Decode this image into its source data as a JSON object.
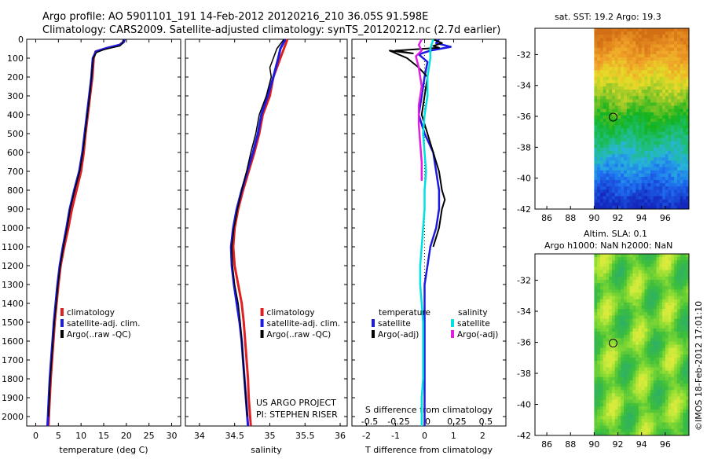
{
  "title_line1": "Argo profile: AO 5901101_191 14-Feb-2012 20120216_210 36.05S 91.598E",
  "title_line2": "Climatology: CARS2009. Satellite-adjusted climatology: synTS_20120212.nc (2.7d earlier)",
  "credit": "US ARGO PROJECT",
  "pi": "PI: STEPHEN RISER",
  "watermark": "©IMOS 18-Feb-2012 17:01:10",
  "map1_title": "sat. SST: 19.2  Argo: 19.3",
  "map2_title1": "Altim. SLA: 0.1",
  "map2_title2": "Argo h1000: NaN h2000: NaN",
  "chart_data": [
    {
      "type": "line",
      "xlabel": "temperature (deg C)",
      "xlim": [
        -2,
        32
      ],
      "xticks": [
        0,
        5,
        10,
        15,
        20,
        25,
        30
      ],
      "ylim": [
        0,
        2050
      ],
      "yticks": [
        0,
        100,
        200,
        300,
        400,
        500,
        600,
        700,
        800,
        900,
        1000,
        1100,
        1200,
        1300,
        1400,
        1500,
        1600,
        1700,
        1800,
        1900,
        2000
      ],
      "y_reversed": true,
      "legend": [
        "climatology",
        "satellite-adj. clim.",
        "Argo(..raw -QC)"
      ],
      "legend_colors": [
        "#e02020",
        "#1a1ae0",
        "#000000"
      ],
      "series": [
        {
          "name": "climatology",
          "color": "#e02020",
          "width": 3,
          "points": [
            [
              19.5,
              0
            ],
            [
              19.3,
              15
            ],
            [
              18.5,
              30
            ],
            [
              16,
              45
            ],
            [
              13.2,
              65
            ],
            [
              12.8,
              100
            ],
            [
              12.5,
              200
            ],
            [
              12,
              300
            ],
            [
              11.5,
              400
            ],
            [
              11,
              500
            ],
            [
              10.6,
              600
            ],
            [
              10,
              700
            ],
            [
              9,
              800
            ],
            [
              8,
              900
            ],
            [
              7.2,
              1000
            ],
            [
              6.3,
              1100
            ],
            [
              5.5,
              1200
            ],
            [
              5,
              1300
            ],
            [
              4.6,
              1400
            ],
            [
              4.2,
              1500
            ],
            [
              3.9,
              1600
            ],
            [
              3.6,
              1700
            ],
            [
              3.3,
              1800
            ],
            [
              3.1,
              1900
            ],
            [
              2.9,
              2000
            ],
            [
              2.8,
              2050
            ]
          ]
        },
        {
          "name": "satellite-adj. clim.",
          "color": "#1a1ae0",
          "width": 3,
          "points": [
            [
              19.6,
              0
            ],
            [
              19.4,
              15
            ],
            [
              18.5,
              30
            ],
            [
              15.5,
              48
            ],
            [
              13.3,
              65
            ],
            [
              12.6,
              100
            ],
            [
              12.3,
              200
            ],
            [
              11.8,
              300
            ],
            [
              11.3,
              400
            ],
            [
              10.8,
              500
            ],
            [
              10.3,
              600
            ],
            [
              9.6,
              700
            ],
            [
              8.5,
              800
            ],
            [
              7.5,
              900
            ],
            [
              6.8,
              1000
            ],
            [
              6,
              1100
            ],
            [
              5.3,
              1200
            ],
            [
              4.8,
              1300
            ],
            [
              4.4,
              1400
            ],
            [
              4,
              1500
            ],
            [
              3.7,
              1600
            ],
            [
              3.4,
              1700
            ],
            [
              3.1,
              1800
            ],
            [
              2.9,
              1900
            ],
            [
              2.7,
              2000
            ],
            [
              2.6,
              2050
            ]
          ]
        },
        {
          "name": "Argo(..raw -QC)",
          "color": "#000000",
          "width": 1.5,
          "points": [
            [
              19.3,
              0
            ],
            [
              19.2,
              20
            ],
            [
              18.6,
              35
            ],
            [
              15,
              55
            ],
            [
              13.4,
              70
            ],
            [
              12.7,
              100
            ],
            [
              12.3,
              200
            ],
            [
              11.9,
              300
            ],
            [
              11.4,
              400
            ],
            [
              10.9,
              500
            ],
            [
              10.4,
              600
            ],
            [
              9.7,
              700
            ],
            [
              8.6,
              800
            ],
            [
              7.6,
              900
            ],
            [
              6.9,
              1000
            ],
            [
              6.1,
              1100
            ],
            [
              5.4,
              1200
            ],
            [
              4.9,
              1300
            ],
            [
              4.5,
              1400
            ],
            [
              4.1,
              1500
            ],
            [
              3.8,
              1600
            ],
            [
              3.5,
              1700
            ],
            [
              3.2,
              1800
            ],
            [
              3,
              1900
            ],
            [
              2.8,
              2000
            ]
          ]
        }
      ]
    },
    {
      "type": "line",
      "xlabel": "salinity",
      "xlim": [
        33.8,
        36.1
      ],
      "xticks": [
        34,
        34.5,
        35,
        35.5,
        36
      ],
      "ylim": [
        0,
        2050
      ],
      "y_reversed": true,
      "legend": [
        "climatology",
        "satellite-adj. clim.",
        "Argo(..raw -QC)"
      ],
      "legend_colors": [
        "#e02020",
        "#1a1ae0",
        "#000000"
      ],
      "series": [
        {
          "name": "climatology",
          "color": "#e02020",
          "width": 3,
          "points": [
            [
              35.25,
              0
            ],
            [
              35.2,
              50
            ],
            [
              35.15,
              100
            ],
            [
              35.05,
              200
            ],
            [
              35,
              300
            ],
            [
              34.9,
              400
            ],
            [
              34.85,
              500
            ],
            [
              34.78,
              600
            ],
            [
              34.7,
              700
            ],
            [
              34.62,
              800
            ],
            [
              34.55,
              900
            ],
            [
              34.5,
              1000
            ],
            [
              34.48,
              1100
            ],
            [
              34.5,
              1200
            ],
            [
              34.55,
              1300
            ],
            [
              34.6,
              1400
            ],
            [
              34.63,
              1500
            ],
            [
              34.65,
              1600
            ],
            [
              34.67,
              1700
            ],
            [
              34.69,
              1800
            ],
            [
              34.7,
              1900
            ],
            [
              34.72,
              2000
            ],
            [
              34.73,
              2050
            ]
          ]
        },
        {
          "name": "satellite-adj. clim.",
          "color": "#1a1ae0",
          "width": 3,
          "points": [
            [
              35.22,
              0
            ],
            [
              35.15,
              50
            ],
            [
              35.12,
              100
            ],
            [
              35.05,
              200
            ],
            [
              34.97,
              300
            ],
            [
              34.88,
              400
            ],
            [
              34.83,
              500
            ],
            [
              34.76,
              600
            ],
            [
              34.68,
              700
            ],
            [
              34.6,
              800
            ],
            [
              34.53,
              900
            ],
            [
              34.48,
              1000
            ],
            [
              34.45,
              1100
            ],
            [
              34.46,
              1200
            ],
            [
              34.49,
              1300
            ],
            [
              34.53,
              1400
            ],
            [
              34.57,
              1500
            ],
            [
              34.6,
              1600
            ],
            [
              34.62,
              1700
            ],
            [
              34.64,
              1800
            ],
            [
              34.66,
              1900
            ],
            [
              34.68,
              2000
            ],
            [
              34.69,
              2050
            ]
          ]
        },
        {
          "name": "Argo(..raw -QC)",
          "color": "#000000",
          "width": 1.5,
          "points": [
            [
              35.2,
              0
            ],
            [
              35.1,
              50
            ],
            [
              35.05,
              100
            ],
            [
              35,
              150
            ],
            [
              35.02,
              200
            ],
            [
              34.95,
              300
            ],
            [
              34.85,
              400
            ],
            [
              34.8,
              500
            ],
            [
              34.73,
              600
            ],
            [
              34.67,
              700
            ],
            [
              34.6,
              800
            ],
            [
              34.54,
              900
            ],
            [
              34.49,
              1000
            ],
            [
              34.46,
              1100
            ],
            [
              34.47,
              1200
            ],
            [
              34.5,
              1300
            ],
            [
              34.55,
              1400
            ],
            [
              34.58,
              1500
            ],
            [
              34.6,
              1600
            ],
            [
              34.62,
              1700
            ],
            [
              34.64,
              1800
            ],
            [
              34.66,
              1900
            ],
            [
              34.68,
              2000
            ]
          ]
        }
      ]
    },
    {
      "type": "line",
      "xlabel": "T difference from climatology",
      "xlim": [
        -2.5,
        2.8
      ],
      "xticks": [
        -2,
        -1,
        0,
        1,
        2
      ],
      "xlabel_top": "S difference from climatology",
      "xticks_top_labels": [
        "-0.5",
        "-0.25",
        "0",
        "0.25",
        "0.5"
      ],
      "xticks_top_positions": [
        -2,
        -1,
        0,
        1,
        2
      ],
      "ylim": [
        0,
        2050
      ],
      "y_reversed": true,
      "legend_title_left": "temperature",
      "legend_title_right": "salinity",
      "legend": [
        "satellite",
        "Argo(-adj)",
        "satellite",
        "Argo(-adj)"
      ],
      "legend_colors": [
        "#1a1ae0",
        "#000000",
        "#00e0e0",
        "#e020e0"
      ],
      "series": [
        {
          "name": "temperature satellite",
          "color": "#1a1ae0",
          "width": 2.5,
          "points": [
            [
              0.5,
              0
            ],
            [
              0.4,
              20
            ],
            [
              0.9,
              40
            ],
            [
              0.2,
              60
            ],
            [
              -0.2,
              80
            ],
            [
              0.1,
              120
            ],
            [
              0,
              200
            ],
            [
              -0.1,
              300
            ],
            [
              -0.2,
              400
            ],
            [
              0,
              500
            ],
            [
              0.3,
              600
            ],
            [
              0.4,
              700
            ],
            [
              0.5,
              800
            ],
            [
              0.5,
              900
            ],
            [
              0.4,
              1000
            ],
            [
              0.2,
              1100
            ],
            [
              0.1,
              1200
            ],
            [
              0,
              1300
            ],
            [
              0,
              1400
            ],
            [
              0,
              1600
            ],
            [
              0,
              1800
            ],
            [
              0,
              2000
            ],
            [
              0,
              2050
            ]
          ]
        },
        {
          "name": "temperature Argo(-adj)",
          "color": "#000000",
          "width": 2,
          "points": [
            [
              0.3,
              0
            ],
            [
              0.6,
              20
            ],
            [
              0.3,
              35
            ],
            [
              0.5,
              45
            ],
            [
              -1,
              60
            ],
            [
              -0.4,
              75
            ],
            [
              -1.2,
              60
            ],
            [
              -0.6,
              100
            ],
            [
              -0.2,
              150
            ],
            [
              0.1,
              200
            ],
            [
              0,
              300
            ],
            [
              -0.1,
              400
            ],
            [
              0.1,
              500
            ],
            [
              0.3,
              600
            ],
            [
              0.5,
              700
            ],
            [
              0.6,
              800
            ],
            [
              0.7,
              850
            ],
            [
              0.6,
              900
            ],
            [
              0.5,
              1000
            ],
            [
              0.3,
              1100
            ]
          ]
        },
        {
          "name": "salinity satellite",
          "color": "#00e0e0",
          "width": 2.5,
          "points": [
            [
              0.3,
              0
            ],
            [
              0.2,
              50
            ],
            [
              0.2,
              100
            ],
            [
              0.1,
              200
            ],
            [
              0.1,
              300
            ],
            [
              0,
              400
            ],
            [
              -0.05,
              500
            ],
            [
              0,
              600
            ],
            [
              0.05,
              700
            ],
            [
              0,
              800
            ],
            [
              0,
              900
            ],
            [
              -0.05,
              1000
            ],
            [
              -0.1,
              1100
            ],
            [
              -0.15,
              1200
            ],
            [
              -0.15,
              1300
            ],
            [
              -0.1,
              1400
            ],
            [
              -0.05,
              1500
            ],
            [
              -0.05,
              1600
            ],
            [
              -0.05,
              1700
            ],
            [
              -0.05,
              1800
            ],
            [
              -0.1,
              1900
            ],
            [
              -0.1,
              2000
            ],
            [
              -0.1,
              2050
            ]
          ]
        },
        {
          "name": "salinity Argo(-adj)",
          "color": "#e020e0",
          "width": 2.5,
          "points": [
            [
              -0.1,
              0
            ],
            [
              -0.2,
              30
            ],
            [
              -0.1,
              60
            ],
            [
              -0.3,
              90
            ],
            [
              -0.2,
              150
            ],
            [
              -0.1,
              250
            ],
            [
              -0.2,
              350
            ],
            [
              -0.2,
              450
            ],
            [
              -0.15,
              550
            ],
            [
              -0.1,
              650
            ],
            [
              -0.1,
              750
            ]
          ]
        }
      ]
    }
  ],
  "map1": {
    "xticks": [
      "86",
      "88",
      "90",
      "92",
      "94",
      "96"
    ],
    "yticks": [
      "-32",
      "-34",
      "-36",
      "-38",
      "-40",
      "-42"
    ]
  },
  "map2": {
    "xticks": [
      "86",
      "88",
      "90",
      "92",
      "94",
      "96"
    ],
    "yticks": [
      "-32",
      "-34",
      "-36",
      "-38",
      "-40",
      "-42"
    ]
  }
}
